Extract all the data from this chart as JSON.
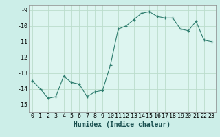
{
  "x": [
    0,
    1,
    2,
    3,
    4,
    5,
    6,
    7,
    8,
    9,
    10,
    11,
    12,
    13,
    14,
    15,
    16,
    17,
    18,
    19,
    20,
    21,
    22,
    23
  ],
  "y": [
    -13.5,
    -14.0,
    -14.6,
    -14.5,
    -13.2,
    -13.6,
    -13.7,
    -14.5,
    -14.2,
    -14.1,
    -12.5,
    -10.2,
    -10.0,
    -9.6,
    -9.2,
    -9.1,
    -9.4,
    -9.5,
    -9.5,
    -10.2,
    -10.3,
    -9.7,
    -10.9,
    -11.0
  ],
  "xlabel": "Humidex (Indice chaleur)",
  "xlim": [
    -0.5,
    23.5
  ],
  "ylim": [
    -15.5,
    -8.7
  ],
  "yticks": [
    -9,
    -10,
    -11,
    -12,
    -13,
    -14,
    -15
  ],
  "xticks": [
    0,
    1,
    2,
    3,
    4,
    5,
    6,
    7,
    8,
    9,
    10,
    11,
    12,
    13,
    14,
    15,
    16,
    17,
    18,
    19,
    20,
    21,
    22,
    23
  ],
  "line_color": "#2e7d6e",
  "marker_color": "#2e7d6e",
  "bg_color": "#cceee8",
  "grid_color": "#bbddcc",
  "plot_bg": "#ddf5f0",
  "label_fontsize": 7,
  "tick_fontsize": 6
}
